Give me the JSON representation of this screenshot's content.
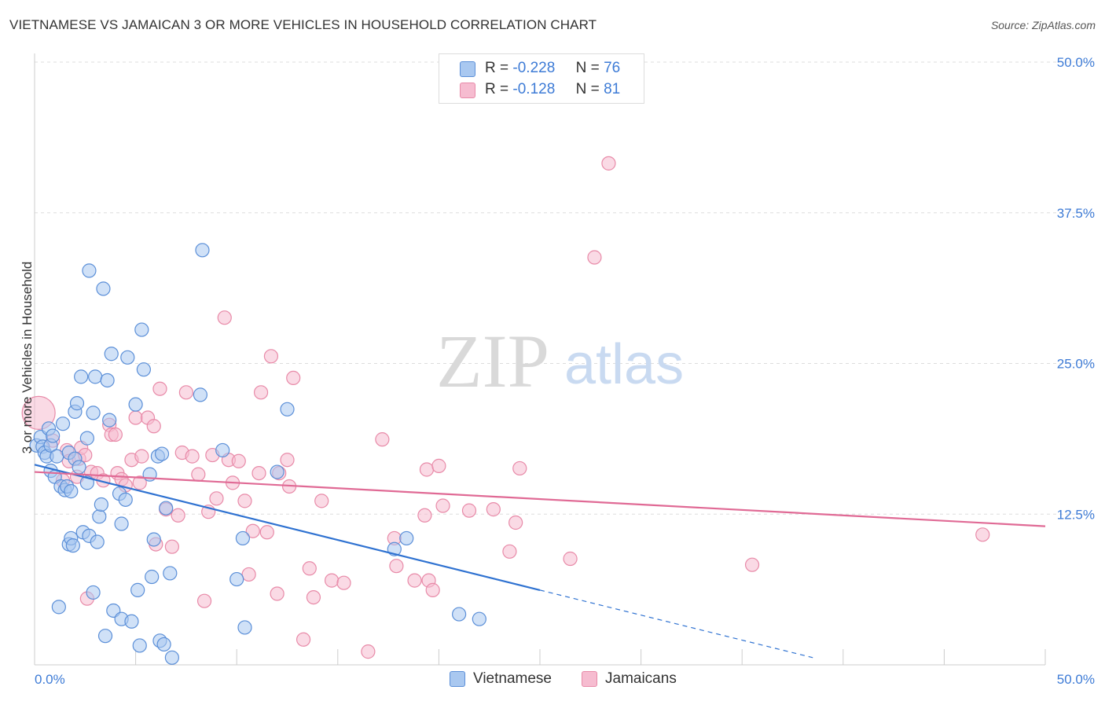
{
  "title": "VIETNAMESE VS JAMAICAN 3 OR MORE VEHICLES IN HOUSEHOLD CORRELATION CHART",
  "source": "Source: ZipAtlas.com",
  "watermark": {
    "zip": "ZIP",
    "atlas": "atlas"
  },
  "legend": {
    "rows": [
      {
        "r_label": "R =",
        "r_value": "-0.228",
        "n_label": "N =",
        "n_value": "76"
      },
      {
        "r_label": "R =",
        "r_value": "-0.128",
        "n_label": "N =",
        "n_value": "81"
      }
    ]
  },
  "bottom_legend": {
    "series1": "Vietnamese",
    "series2": "Jamaicans"
  },
  "colors": {
    "vietnamese_fill": "#a9c8f0",
    "vietnamese_stroke": "#5b8fd8",
    "vietnamese_line": "#2f72d1",
    "jamaican_fill": "#f6bcd0",
    "jamaican_stroke": "#e88aa8",
    "jamaican_line": "#e06a95",
    "tick_text": "#3d7bd6",
    "grid": "#dddddd"
  },
  "chart_data": {
    "type": "scatter",
    "title": "VIETNAMESE VS JAMAICAN 3 OR MORE VEHICLES IN HOUSEHOLD CORRELATION CHART",
    "xlabel": "",
    "ylabel": "3 or more Vehicles in Household",
    "xlim": [
      0,
      50
    ],
    "ylim": [
      0,
      50
    ],
    "x_tick_labels": [
      "0.0%",
      "50.0%"
    ],
    "y_tick_labels": [
      "12.5%",
      "25.0%",
      "37.5%",
      "50.0%"
    ],
    "y_ticks": [
      12.5,
      25.0,
      37.5,
      50.0
    ],
    "grid": true,
    "series": [
      {
        "name": "Vietnamese",
        "R": -0.228,
        "N": 76,
        "trend": {
          "x": [
            0.0,
            25.0
          ],
          "y": [
            16.6,
            6.2
          ],
          "dashed_to": [
            38.5,
            0.6
          ]
        },
        "points": [
          [
            0.1,
            18.2
          ],
          [
            0.3,
            18.9
          ],
          [
            0.4,
            18.1
          ],
          [
            0.5,
            17.6
          ],
          [
            0.6,
            17.3
          ],
          [
            0.7,
            19.6
          ],
          [
            0.8,
            16.1
          ],
          [
            0.8,
            18.2
          ],
          [
            0.9,
            19.0
          ],
          [
            1.0,
            15.6
          ],
          [
            1.1,
            17.3
          ],
          [
            1.2,
            4.8
          ],
          [
            1.3,
            14.8
          ],
          [
            1.4,
            20.0
          ],
          [
            1.5,
            14.5
          ],
          [
            1.6,
            14.8
          ],
          [
            1.7,
            17.6
          ],
          [
            1.8,
            14.4
          ],
          [
            1.7,
            10.0
          ],
          [
            1.8,
            10.5
          ],
          [
            1.9,
            9.9
          ],
          [
            2.0,
            17.1
          ],
          [
            2.0,
            21.0
          ],
          [
            2.1,
            21.7
          ],
          [
            2.3,
            23.9
          ],
          [
            2.2,
            16.4
          ],
          [
            2.4,
            11.0
          ],
          [
            2.6,
            15.1
          ],
          [
            2.6,
            18.8
          ],
          [
            2.7,
            10.7
          ],
          [
            2.7,
            32.7
          ],
          [
            2.9,
            6.0
          ],
          [
            2.9,
            20.9
          ],
          [
            3.0,
            23.9
          ],
          [
            3.1,
            10.2
          ],
          [
            3.2,
            12.3
          ],
          [
            3.3,
            13.3
          ],
          [
            3.4,
            31.2
          ],
          [
            3.5,
            2.4
          ],
          [
            3.6,
            23.6
          ],
          [
            3.7,
            20.3
          ],
          [
            3.8,
            25.8
          ],
          [
            3.9,
            4.5
          ],
          [
            4.2,
            14.2
          ],
          [
            4.3,
            3.8
          ],
          [
            4.3,
            11.7
          ],
          [
            4.5,
            13.7
          ],
          [
            4.6,
            25.5
          ],
          [
            4.8,
            3.6
          ],
          [
            5.0,
            21.6
          ],
          [
            5.1,
            6.2
          ],
          [
            5.2,
            1.6
          ],
          [
            5.3,
            27.8
          ],
          [
            5.4,
            24.5
          ],
          [
            5.7,
            15.8
          ],
          [
            5.8,
            7.3
          ],
          [
            5.9,
            10.4
          ],
          [
            6.1,
            17.3
          ],
          [
            6.2,
            2.0
          ],
          [
            6.3,
            17.5
          ],
          [
            6.4,
            1.7
          ],
          [
            6.5,
            13.0
          ],
          [
            6.7,
            7.6
          ],
          [
            6.8,
            0.6
          ],
          [
            8.2,
            22.4
          ],
          [
            8.3,
            34.4
          ],
          [
            9.3,
            17.8
          ],
          [
            10.0,
            7.1
          ],
          [
            10.3,
            10.5
          ],
          [
            10.4,
            3.1
          ],
          [
            12.0,
            16.0
          ],
          [
            12.5,
            21.2
          ],
          [
            17.8,
            9.6
          ],
          [
            18.4,
            10.5
          ],
          [
            21.0,
            4.2
          ],
          [
            22.0,
            3.8
          ]
        ]
      },
      {
        "name": "Jamaicans",
        "R": -0.128,
        "N": 81,
        "trend": {
          "x": [
            0.0,
            50.0
          ],
          "y": [
            16.0,
            11.5
          ]
        },
        "points": [
          [
            0.2,
            20.9
          ],
          [
            0.9,
            18.6
          ],
          [
            1.4,
            15.3
          ],
          [
            1.6,
            17.8
          ],
          [
            1.7,
            16.9
          ],
          [
            2.1,
            15.6
          ],
          [
            2.2,
            17.1
          ],
          [
            2.3,
            18.0
          ],
          [
            2.5,
            17.4
          ],
          [
            2.6,
            5.5
          ],
          [
            2.8,
            16.0
          ],
          [
            3.1,
            15.9
          ],
          [
            3.4,
            15.3
          ],
          [
            3.7,
            19.9
          ],
          [
            3.8,
            19.1
          ],
          [
            4.0,
            19.1
          ],
          [
            4.1,
            15.9
          ],
          [
            4.3,
            15.4
          ],
          [
            4.5,
            14.9
          ],
          [
            4.8,
            17.0
          ],
          [
            5.0,
            20.5
          ],
          [
            5.2,
            15.1
          ],
          [
            5.3,
            17.3
          ],
          [
            5.6,
            20.5
          ],
          [
            5.9,
            19.8
          ],
          [
            6.0,
            10.0
          ],
          [
            6.2,
            22.9
          ],
          [
            6.5,
            12.9
          ],
          [
            6.8,
            9.8
          ],
          [
            7.1,
            12.4
          ],
          [
            7.3,
            17.6
          ],
          [
            7.5,
            22.6
          ],
          [
            7.8,
            17.3
          ],
          [
            8.1,
            15.8
          ],
          [
            8.4,
            5.3
          ],
          [
            8.6,
            12.7
          ],
          [
            8.8,
            17.4
          ],
          [
            9.0,
            13.8
          ],
          [
            9.4,
            28.8
          ],
          [
            9.6,
            17.0
          ],
          [
            9.8,
            15.1
          ],
          [
            10.1,
            16.9
          ],
          [
            10.4,
            13.6
          ],
          [
            10.6,
            7.5
          ],
          [
            10.8,
            11.1
          ],
          [
            11.1,
            15.9
          ],
          [
            11.2,
            22.6
          ],
          [
            11.5,
            11.0
          ],
          [
            11.7,
            25.6
          ],
          [
            12.1,
            15.9
          ],
          [
            12.5,
            17.0
          ],
          [
            12.6,
            14.8
          ],
          [
            12.8,
            23.8
          ],
          [
            13.3,
            2.1
          ],
          [
            13.6,
            8.0
          ],
          [
            13.8,
            5.6
          ],
          [
            14.2,
            13.6
          ],
          [
            14.7,
            7.0
          ],
          [
            15.3,
            6.8
          ],
          [
            16.5,
            1.1
          ],
          [
            17.2,
            18.7
          ],
          [
            17.8,
            10.5
          ],
          [
            17.9,
            8.2
          ],
          [
            18.8,
            7.0
          ],
          [
            19.3,
            12.4
          ],
          [
            19.4,
            16.2
          ],
          [
            19.5,
            7.0
          ],
          [
            19.7,
            6.2
          ],
          [
            20.0,
            16.5
          ],
          [
            20.2,
            13.2
          ],
          [
            21.5,
            12.8
          ],
          [
            22.7,
            12.9
          ],
          [
            23.8,
            11.8
          ],
          [
            24.0,
            16.3
          ],
          [
            26.5,
            8.8
          ],
          [
            27.7,
            33.8
          ],
          [
            28.4,
            41.6
          ],
          [
            35.5,
            8.3
          ],
          [
            46.9,
            10.8
          ],
          [
            23.5,
            9.4
          ],
          [
            12.0,
            5.9
          ]
        ]
      }
    ]
  }
}
